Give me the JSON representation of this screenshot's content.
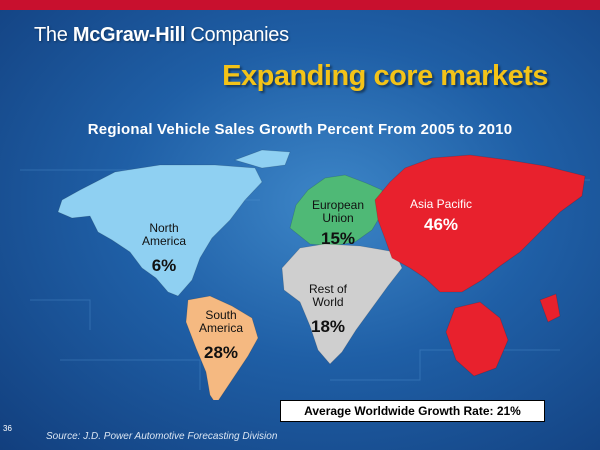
{
  "brand": {
    "prefix": "The ",
    "name": "McGraw-Hill",
    "suffix": " Companies"
  },
  "slide": {
    "title": "Expanding core markets",
    "page_number": "36",
    "source": "Source: J.D. Power Automotive Forecasting Division"
  },
  "chart_data": {
    "type": "table",
    "title": "Regional Vehicle Sales Growth Percent From 2005 to 2010",
    "unit": "%",
    "regions": [
      {
        "label_line1": "North",
        "label_line2": "America",
        "value": 6,
        "value_label": "6%",
        "color": "#8fd0f2"
      },
      {
        "label_line1": "South",
        "label_line2": "America",
        "value": 28,
        "value_label": "28%",
        "color": "#f5b981"
      },
      {
        "label_line1": "European",
        "label_line2": "Union",
        "value": 15,
        "value_label": "15%",
        "color": "#4fb976"
      },
      {
        "label_line1": "Rest of",
        "label_line2": "World",
        "value": 18,
        "value_label": "18%",
        "color": "#cfcfcf"
      },
      {
        "label_line1": "Asia Pacific",
        "label_line2": "",
        "value": 46,
        "value_label": "46%",
        "color": "#e8212d"
      }
    ],
    "average_text": "Average Worldwide Growth Rate: 21%",
    "average_value": 21
  }
}
